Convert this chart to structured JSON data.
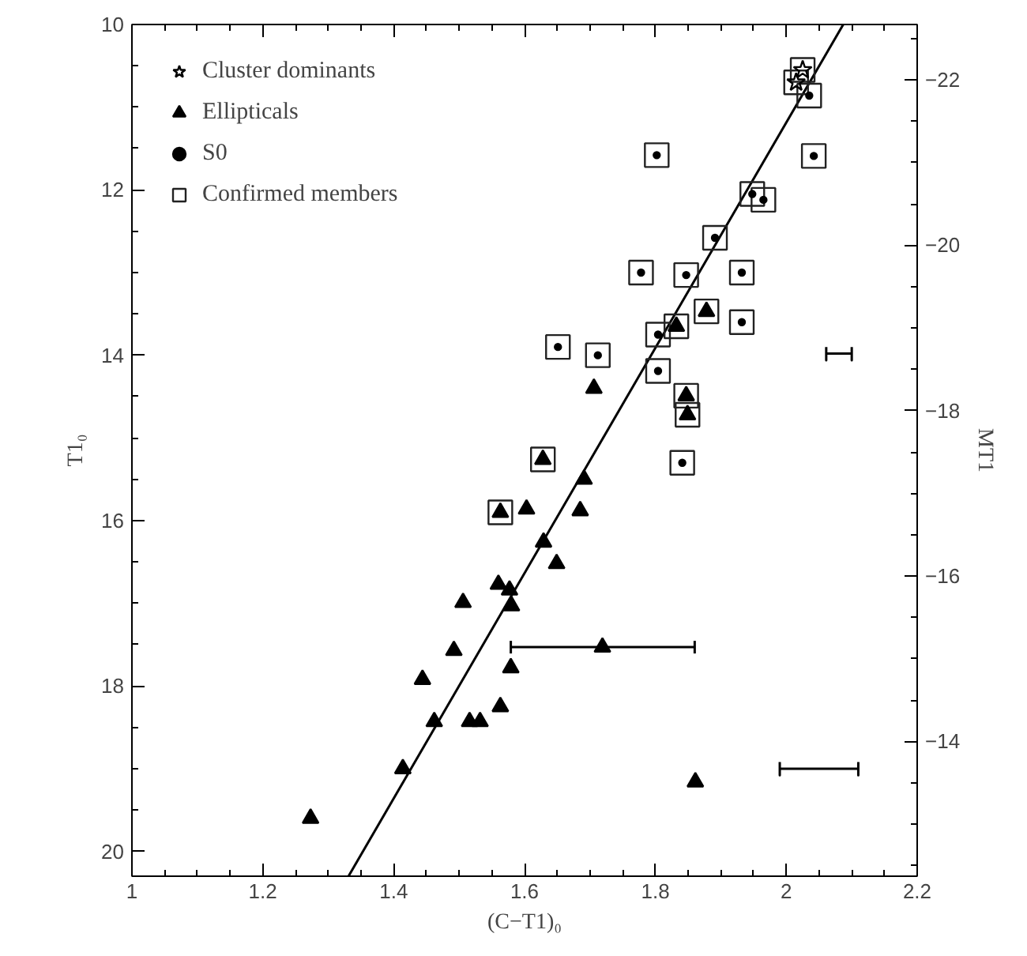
{
  "chart_data": {
    "type": "scatter",
    "xlabel": "(C−T1)₀",
    "ylabel": "T1₀",
    "y2label": "MT1",
    "xlim": [
      1,
      2.2
    ],
    "ylim": [
      20.3,
      10
    ],
    "y2lim": [
      -12.37,
      -22.67
    ],
    "xticks": [
      1,
      {
        "value": 1.05,
        "label": null
      },
      {
        "value": 1.1,
        "label": null
      },
      {
        "value": 1.15,
        "label": null
      },
      1.2,
      {
        "value": 1.25,
        "label": null
      },
      {
        "value": 1.3,
        "label": null
      },
      {
        "value": 1.35,
        "label": null
      },
      1.4,
      {
        "value": 1.45,
        "label": null
      },
      {
        "value": 1.5,
        "label": null
      },
      {
        "value": 1.55,
        "label": null
      },
      1.6,
      {
        "value": 1.65,
        "label": null
      },
      {
        "value": 1.7,
        "label": null
      },
      {
        "value": 1.75,
        "label": null
      },
      1.8,
      {
        "value": 1.85,
        "label": null
      },
      {
        "value": 1.9,
        "label": null
      },
      {
        "value": 1.95,
        "label": null
      },
      2,
      {
        "value": 2.05,
        "label": null
      },
      {
        "value": 2.1,
        "label": null
      },
      {
        "value": 2.15,
        "label": null
      },
      2.2
    ],
    "yticks": [
      10,
      {
        "value": 10.5,
        "label": null
      },
      {
        "value": 11,
        "label": null
      },
      {
        "value": 11.5,
        "label": null
      },
      12,
      {
        "value": 12.5,
        "label": null
      },
      {
        "value": 13,
        "label": null
      },
      {
        "value": 13.5,
        "label": null
      },
      14,
      {
        "value": 14.5,
        "label": null
      },
      {
        "value": 15,
        "label": null
      },
      {
        "value": 15.5,
        "label": null
      },
      16,
      {
        "value": 16.5,
        "label": null
      },
      {
        "value": 17,
        "label": null
      },
      {
        "value": 17.5,
        "label": null
      },
      18,
      {
        "value": 18.5,
        "label": null
      },
      {
        "value": 19,
        "label": null
      },
      {
        "value": 19.5,
        "label": null
      },
      20
    ],
    "y2ticks": [
      -22,
      {
        "value": -22.5,
        "label": null
      },
      {
        "value": -21.5,
        "label": null
      },
      {
        "value": -21,
        "label": null
      },
      {
        "value": -20.5,
        "label": null
      },
      -20,
      {
        "value": -19.5,
        "label": null
      },
      {
        "value": -19,
        "label": null
      },
      {
        "value": -18.5,
        "label": null
      },
      -18,
      {
        "value": -17.5,
        "label": null
      },
      {
        "value": -17,
        "label": null
      },
      {
        "value": -16.5,
        "label": null
      },
      -16,
      {
        "value": -15.5,
        "label": null
      },
      {
        "value": -15,
        "label": null
      },
      {
        "value": -14.5,
        "label": null
      },
      -14,
      {
        "value": -13.5,
        "label": null
      },
      {
        "value": -13,
        "label": null
      },
      {
        "value": -12.5,
        "label": null
      }
    ],
    "grid": false,
    "legend": "top left",
    "series": [
      {
        "name": "Cluster dominants",
        "marker": "star",
        "color": "#000000",
        "x": [
          2.025,
          2.015
        ],
        "values": [
          10.55,
          10.7
        ]
      },
      {
        "name": "Ellipticals",
        "marker": "triangle",
        "color": "#000000",
        "x": [
          1.878,
          1.832,
          1.847,
          1.849,
          1.628,
          1.563,
          1.706,
          1.603,
          1.685,
          1.691,
          1.629,
          1.649,
          1.56,
          1.577,
          1.58,
          1.506,
          1.492,
          1.719,
          1.444,
          1.579,
          1.563,
          1.462,
          1.516,
          1.532,
          1.414,
          1.273,
          1.861
        ],
        "values": [
          13.47,
          13.65,
          14.49,
          14.72,
          15.26,
          15.9,
          14.4,
          15.86,
          15.88,
          15.5,
          16.26,
          16.52,
          16.77,
          16.84,
          17.03,
          16.99,
          17.57,
          17.53,
          17.92,
          17.78,
          18.25,
          18.43,
          18.43,
          18.43,
          19.0,
          19.6,
          19.16
        ],
        "xerrors": [
          null,
          null,
          null,
          null,
          null,
          null,
          null,
          null,
          null,
          null,
          null,
          null,
          null,
          null,
          null,
          null,
          null,
          [
            1.579,
            1.86
          ],
          null,
          null,
          null,
          null,
          null,
          null,
          null,
          null,
          null
        ]
      },
      {
        "name": "S0",
        "marker": "circle",
        "color": "#000000",
        "x": [
          2.035,
          1.802,
          2.042,
          1.948,
          1.965,
          1.891,
          1.778,
          1.847,
          1.932,
          1.932,
          1.804,
          1.651,
          1.712,
          1.804,
          1.841
        ],
        "values": [
          10.86,
          11.58,
          11.59,
          12.05,
          12.12,
          12.58,
          13.0,
          13.03,
          13.0,
          13.6,
          13.75,
          13.9,
          14.0,
          14.19,
          15.3
        ]
      },
      {
        "name": "Confirmed members",
        "marker": "square",
        "color": "#222222",
        "x": [
          2.025,
          2.015,
          2.035,
          1.802,
          2.042,
          1.948,
          1.965,
          1.891,
          1.778,
          1.847,
          1.932,
          1.932,
          1.804,
          1.651,
          1.712,
          1.804,
          1.841,
          1.878,
          1.832,
          1.847,
          1.849,
          1.628,
          1.563
        ],
        "values": [
          10.55,
          10.7,
          10.86,
          11.58,
          11.59,
          12.05,
          12.12,
          12.58,
          13.0,
          13.03,
          13.0,
          13.6,
          13.75,
          13.9,
          14.0,
          14.19,
          15.3,
          13.47,
          13.65,
          14.49,
          14.72,
          15.26,
          15.9
        ]
      },
      {
        "type": "line",
        "color": "#000000",
        "x": [
          2.061,
          2.061,
          2.061,
          2.1,
          2.1,
          2.1
        ],
        "values": [
          13.9,
          14.06,
          13.98,
          13.98,
          14.06,
          13.9
        ]
      },
      {
        "type": "line",
        "color": "#000000",
        "x": [
          1.99,
          1.99,
          1.99,
          2.11,
          2.11,
          2.11
        ],
        "values": [
          18.92,
          19.08,
          19.0,
          19.0,
          19.08,
          18.92
        ]
      },
      {
        "type": "line",
        "color": "#000000",
        "x": [
          1.331,
          2.087
        ],
        "values": [
          20.3,
          10.0
        ]
      }
    ]
  }
}
